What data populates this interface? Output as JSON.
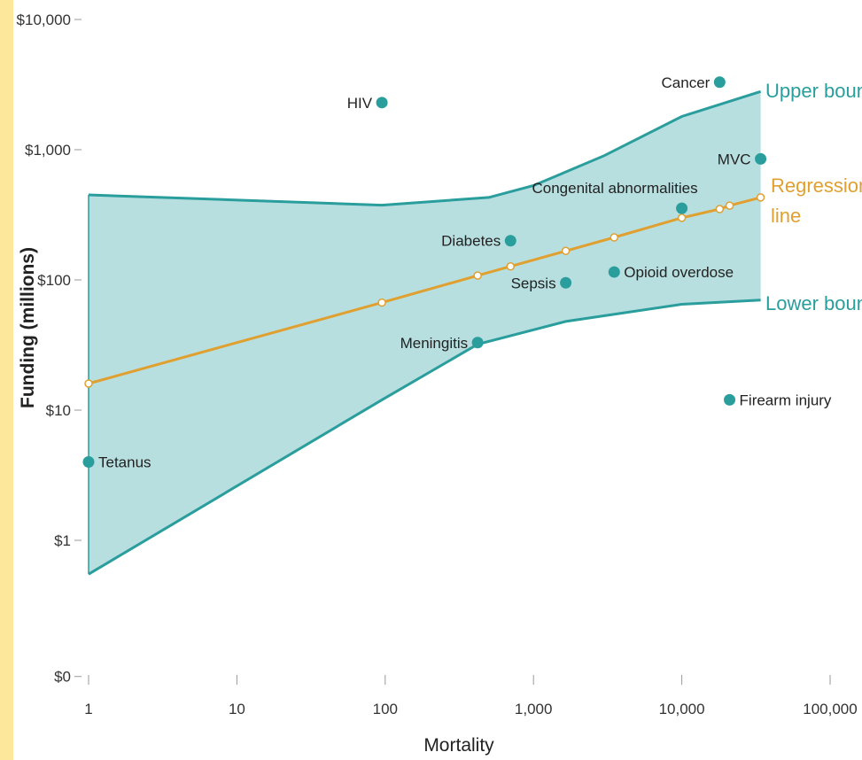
{
  "chart_data": {
    "type": "scatter",
    "xlabel": "Mortality",
    "ylabel": "Funding (millions)",
    "xscale": "log",
    "yscale": "log",
    "xlim": [
      1,
      100000
    ],
    "ylim": [
      0.09,
      10000
    ],
    "x_ticks": [
      {
        "value": 1,
        "label": "1"
      },
      {
        "value": 10,
        "label": "10"
      },
      {
        "value": 100,
        "label": "100"
      },
      {
        "value": 1000,
        "label": "1,000"
      },
      {
        "value": 10000,
        "label": "10,000"
      },
      {
        "value": 100000,
        "label": "100,000"
      }
    ],
    "y_ticks": [
      {
        "value": 10000,
        "label": "$10,000"
      },
      {
        "value": 1000,
        "label": "$1,000"
      },
      {
        "value": 100,
        "label": "$100"
      },
      {
        "value": 10,
        "label": "$10"
      },
      {
        "value": 1,
        "label": "$1"
      },
      {
        "value": 0.09,
        "label": "$0"
      }
    ],
    "points": [
      {
        "name": "Tetanus",
        "x": 1,
        "y": 4,
        "label_side": "right"
      },
      {
        "name": "HIV",
        "x": 95,
        "y": 2300,
        "label_side": "left"
      },
      {
        "name": "Meningitis",
        "x": 420,
        "y": 33,
        "label_side": "left"
      },
      {
        "name": "Diabetes",
        "x": 700,
        "y": 200,
        "label_side": "left"
      },
      {
        "name": "Sepsis",
        "x": 1650,
        "y": 95,
        "label_side": "left"
      },
      {
        "name": "Opioid overdose",
        "x": 3500,
        "y": 115,
        "label_side": "right"
      },
      {
        "name": "Congenital abnormalities",
        "x": 10000,
        "y": 355,
        "label_side": "above-left"
      },
      {
        "name": "Cancer",
        "x": 18000,
        "y": 3300,
        "label_side": "left"
      },
      {
        "name": "Firearm injury",
        "x": 21000,
        "y": 12,
        "label_side": "right"
      },
      {
        "name": "MVC",
        "x": 34000,
        "y": 850,
        "label_side": "left"
      }
    ],
    "regression": {
      "label": [
        "Regression",
        "line"
      ],
      "color": "#e0a030",
      "x": [
        1,
        95,
        420,
        700,
        1650,
        3500,
        10000,
        18000,
        21000,
        34000
      ],
      "y": [
        16,
        67,
        108,
        127,
        167,
        212,
        300,
        350,
        372,
        430
      ]
    },
    "band": {
      "fill_color": "#b8dfe0",
      "line_color": "#2a9d9d",
      "upper_label": "Upper bound",
      "lower_label": "Lower bound",
      "upper": {
        "x": [
          1,
          95,
          500,
          1000,
          3000,
          10000,
          34000
        ],
        "y": [
          450,
          375,
          430,
          530,
          900,
          1800,
          2800
        ]
      },
      "lower": {
        "x": [
          1,
          95,
          420,
          1650,
          10000,
          34000
        ],
        "y": [
          0.55,
          12,
          32,
          48,
          65,
          70
        ]
      }
    },
    "point_color": "#2a9d9d",
    "grid": false,
    "legend": "none"
  }
}
